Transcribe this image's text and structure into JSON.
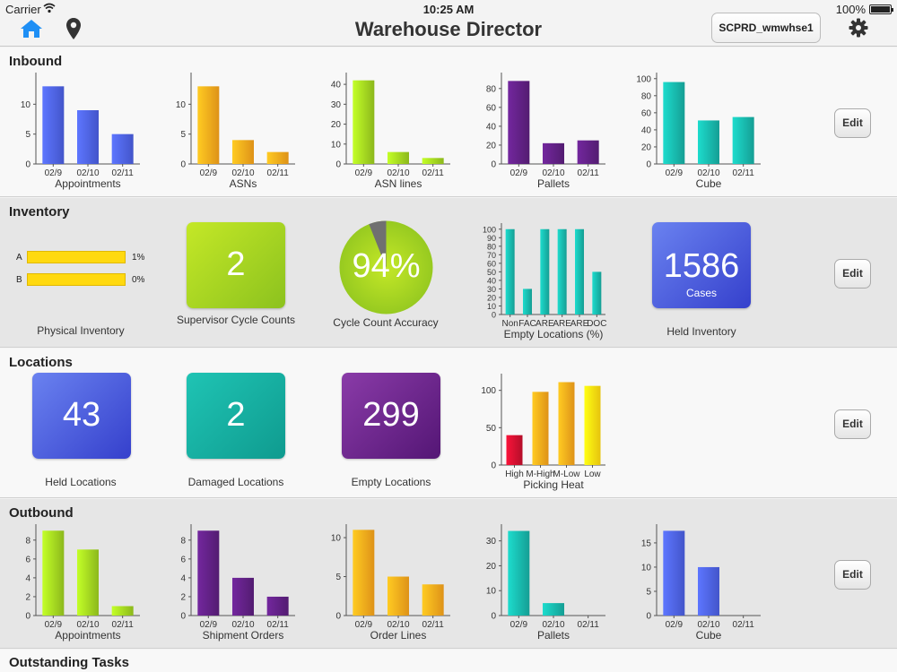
{
  "status": {
    "carrier": "Carrier",
    "time": "10:25 AM",
    "battery": "100%"
  },
  "nav": {
    "title": "Warehouse Director",
    "environment": "SCPRD_wmwhse1",
    "home_icon": "home-icon",
    "location_icon": "map-pin-icon",
    "settings_icon": "gear-icon"
  },
  "colors": {
    "blue": "#4a5ee0",
    "orange": "#f7a21b",
    "lime": "#9ccc1f",
    "purple": "#5c1f7e",
    "teal": "#17b0a4",
    "red": "#c8102e",
    "yellow": "#ffd90f",
    "grey": "#707070"
  },
  "sections": {
    "inbound": {
      "title": "Inbound",
      "edit": "Edit"
    },
    "inventory": {
      "title": "Inventory",
      "edit": "Edit"
    },
    "locations": {
      "title": "Locations",
      "edit": "Edit"
    },
    "outbound": {
      "title": "Outbound",
      "edit": "Edit"
    },
    "outstanding": {
      "title": "Outstanding Tasks"
    }
  },
  "inventory_widgets": {
    "physical": {
      "caption": "Physical Inventory",
      "rows": [
        {
          "label": "A",
          "value": "1%"
        },
        {
          "label": "B",
          "value": "0%"
        }
      ]
    },
    "cycle_counts": {
      "value": "2",
      "caption": "Supervisor Cycle Counts"
    },
    "accuracy": {
      "value": "94%",
      "percent": 94,
      "caption": "Cycle Count Accuracy"
    },
    "held_inventory": {
      "value": "1586",
      "unit": "Cases",
      "caption": "Held Inventory"
    }
  },
  "location_widgets": {
    "held": {
      "value": "43",
      "caption": "Held Locations"
    },
    "damaged": {
      "value": "2",
      "caption": "Damaged Locations"
    },
    "empty": {
      "value": "299",
      "caption": "Empty Locations"
    }
  },
  "chart_data": [
    {
      "id": "inb-appointments",
      "type": "bar",
      "title": "Appointments",
      "categories": [
        "02/9",
        "02/10",
        "02/11"
      ],
      "values": [
        13,
        9,
        5
      ],
      "ylim": [
        0,
        15
      ],
      "yticks": [
        0,
        5,
        10
      ],
      "color": "blue"
    },
    {
      "id": "inb-asns",
      "type": "bar",
      "title": "ASNs",
      "categories": [
        "02/9",
        "02/10",
        "02/11"
      ],
      "values": [
        13,
        4,
        2
      ],
      "ylim": [
        0,
        15
      ],
      "yticks": [
        0,
        5,
        10
      ],
      "color": "orange"
    },
    {
      "id": "inb-asnlines",
      "type": "bar",
      "title": "ASN lines",
      "categories": [
        "02/9",
        "02/10",
        "02/11"
      ],
      "values": [
        42,
        6,
        3
      ],
      "ylim": [
        0,
        45
      ],
      "yticks": [
        0,
        10,
        20,
        30,
        40
      ],
      "color": "lime"
    },
    {
      "id": "inb-pallets",
      "type": "bar",
      "title": "Pallets",
      "categories": [
        "02/9",
        "02/10",
        "02/11"
      ],
      "values": [
        88,
        22,
        25
      ],
      "ylim": [
        0,
        95
      ],
      "yticks": [
        0,
        20,
        40,
        60,
        80
      ],
      "color": "purple"
    },
    {
      "id": "inb-cube",
      "type": "bar",
      "title": "Cube",
      "categories": [
        "02/9",
        "02/10",
        "02/11"
      ],
      "values": [
        96,
        51,
        55
      ],
      "ylim": [
        0,
        105
      ],
      "yticks": [
        0,
        20,
        40,
        60,
        80,
        100
      ],
      "color": "teal"
    },
    {
      "id": "inv-empty",
      "type": "bar",
      "title": "Empty Locations (%)",
      "categories": [
        "Non",
        "FAC",
        "ARE",
        "ARE",
        "ARE",
        "DOC"
      ],
      "values": [
        100,
        30,
        100,
        100,
        100,
        50
      ],
      "ylim": [
        0,
        105
      ],
      "yticks": [
        0,
        10,
        20,
        30,
        40,
        50,
        60,
        70,
        80,
        90,
        100
      ],
      "color": "teal"
    },
    {
      "id": "loc-heat",
      "type": "bar",
      "title": "Picking Heat",
      "categories": [
        "High",
        "M-High",
        "M-Low",
        "Low"
      ],
      "values": [
        40,
        98,
        111,
        106
      ],
      "ylim": [
        0,
        120
      ],
      "yticks": [
        0,
        50,
        100
      ],
      "colors": [
        "red",
        "orange",
        "orange",
        "yellow"
      ]
    },
    {
      "id": "out-appointments",
      "type": "bar",
      "title": "Appointments",
      "categories": [
        "02/9",
        "02/10",
        "02/11"
      ],
      "values": [
        9,
        7,
        1
      ],
      "ylim": [
        0,
        9.5
      ],
      "yticks": [
        0,
        2,
        4,
        6,
        8
      ],
      "color": "lime"
    },
    {
      "id": "out-shipments",
      "type": "bar",
      "title": "Shipment Orders",
      "categories": [
        "02/9",
        "02/10",
        "02/11"
      ],
      "values": [
        9,
        4,
        2
      ],
      "ylim": [
        0,
        9.5
      ],
      "yticks": [
        0,
        2,
        4,
        6,
        8
      ],
      "color": "purple"
    },
    {
      "id": "out-orderlines",
      "type": "bar",
      "title": "Order Lines",
      "categories": [
        "02/9",
        "02/10",
        "02/11"
      ],
      "values": [
        11,
        5,
        4
      ],
      "ylim": [
        0,
        11.5
      ],
      "yticks": [
        0,
        5,
        10
      ],
      "color": "orange"
    },
    {
      "id": "out-pallets",
      "type": "bar",
      "title": "Pallets",
      "categories": [
        "02/9",
        "02/10",
        "02/11"
      ],
      "values": [
        34,
        5,
        0
      ],
      "ylim": [
        0,
        36
      ],
      "yticks": [
        0,
        10,
        20,
        30
      ],
      "color": "teal"
    },
    {
      "id": "out-cube",
      "type": "bar",
      "title": "Cube",
      "categories": [
        "02/9",
        "02/10",
        "02/11"
      ],
      "values": [
        17.5,
        10,
        0
      ],
      "ylim": [
        0,
        18.5
      ],
      "yticks": [
        0,
        5,
        10,
        15
      ],
      "color": "blue"
    }
  ]
}
